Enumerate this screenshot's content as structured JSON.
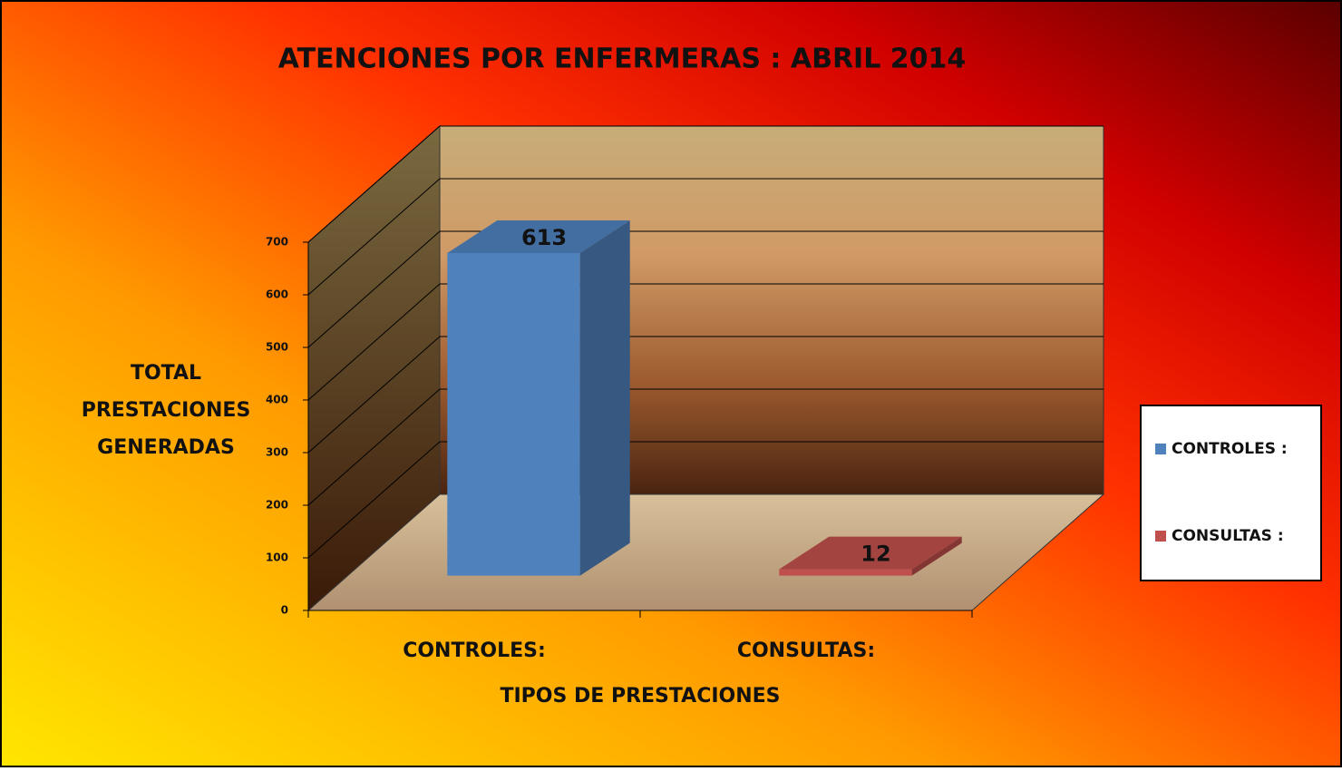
{
  "chart_data": {
    "type": "bar3d",
    "title": "ATENCIONES POR ENFERMERAS :  ABRIL  2014",
    "x_label": "TIPOS  DE  PRESTACIONES",
    "y_label": [
      "TOTAL",
      "PRESTACIONES",
      "GENERADAS"
    ],
    "categories": [
      "CONTROLES:",
      "CONSULTAS:"
    ],
    "series": [
      {
        "name": "CONTROLES :",
        "color": "#4f81bd",
        "values": [
          613,
          null
        ]
      },
      {
        "name": "CONSULTAS :",
        "color": "#c0504d",
        "values": [
          null,
          12
        ]
      }
    ],
    "ylim": [
      0,
      700
    ],
    "yticks": [
      0,
      100,
      200,
      300,
      400,
      500,
      600,
      700
    ],
    "grid": true,
    "legend": "right"
  }
}
